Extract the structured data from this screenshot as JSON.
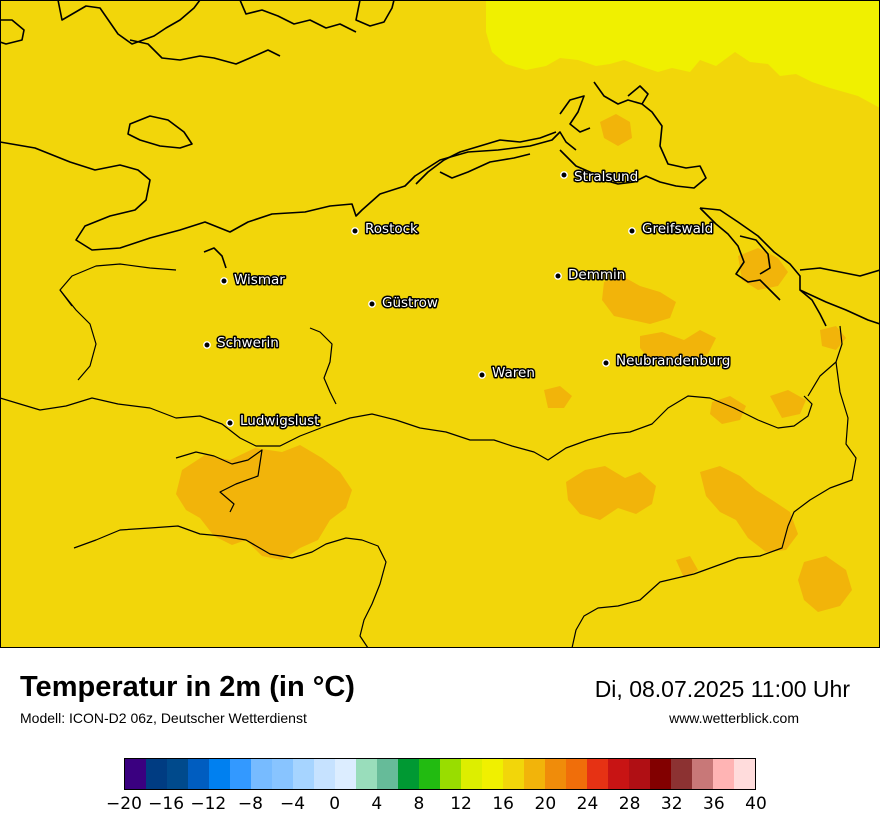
{
  "map": {
    "background_color": "#f2d60a",
    "cities": [
      {
        "id": "stralsund",
        "name": "Stralsund"
      },
      {
        "id": "rostock",
        "name": "Rostock"
      },
      {
        "id": "greifswald",
        "name": "Greifswald"
      },
      {
        "id": "wismar",
        "name": "Wismar"
      },
      {
        "id": "demmin",
        "name": "Demmin"
      },
      {
        "id": "guestrow",
        "name": "Güstrow"
      },
      {
        "id": "schwerin",
        "name": "Schwerin"
      },
      {
        "id": "neubrandenburg",
        "name": "Neubrandenburg"
      },
      {
        "id": "waren",
        "name": "Waren"
      },
      {
        "id": "ludwigslust",
        "name": "Ludwigslust"
      }
    ]
  },
  "footer": {
    "title": "Temperatur in 2m (in °C)",
    "model": "Modell: ICON-D2 06z, Deutscher Wetterdienst",
    "datetime": "Di, 08.07.2025 11:00 Uhr",
    "website": "www.wetterblick.com"
  },
  "legend": {
    "colors": [
      "#3a0080",
      "#003c82",
      "#004a8c",
      "#005dc0",
      "#0080f0",
      "#3399ff",
      "#77bbff",
      "#88c4ff",
      "#a6d4ff",
      "#c6e2ff",
      "#dcedff",
      "#99ddbb",
      "#66bb99",
      "#009933",
      "#22bb11",
      "#99dd00",
      "#ddee00",
      "#f0f000",
      "#f2d60a",
      "#f2b40a",
      "#f08c0a",
      "#f06e0a",
      "#e63214",
      "#c81414",
      "#b00f14",
      "#820000",
      "#8c3232",
      "#c87878",
      "#ffb4b4",
      "#ffdcdc"
    ],
    "tick_labels": [
      "−20",
      "−16",
      "−12",
      "−8",
      "−4",
      "0",
      "4",
      "8",
      "12",
      "16",
      "20",
      "24",
      "28",
      "32",
      "36",
      "40"
    ]
  }
}
